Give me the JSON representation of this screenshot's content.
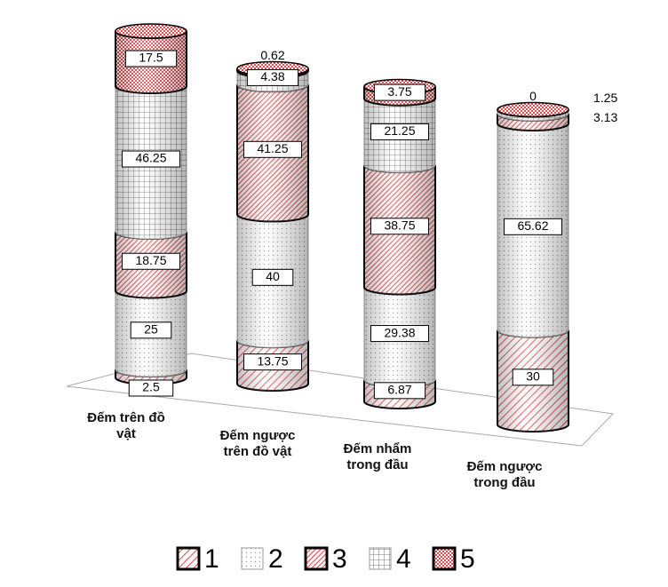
{
  "chart_data": {
    "type": "stacked-cylinder",
    "categories": [
      "Đếm trên đồ\nvật",
      "Đếm ngược\ntrên đồ vật",
      "Đếm nhẩm\ntrong đầu",
      "Đếm ngược\ntrong đầu"
    ],
    "series": [
      {
        "name": "1",
        "color": "#e8474b",
        "values": [
          2.5,
          13.75,
          6.87,
          30
        ]
      },
      {
        "name": "2",
        "color": "#bdbdbd",
        "values": [
          25,
          40,
          29.38,
          65.62
        ]
      },
      {
        "name": "3",
        "color": "#e8474b",
        "values": [
          18.75,
          41.25,
          38.75,
          3.13
        ]
      },
      {
        "name": "4",
        "color": "#7f7f7f",
        "values": [
          46.25,
          4.38,
          21.25,
          1.25
        ]
      },
      {
        "name": "5",
        "color": "#e8474b",
        "values": [
          17.5,
          0.62,
          3.75,
          0
        ]
      }
    ]
  }
}
